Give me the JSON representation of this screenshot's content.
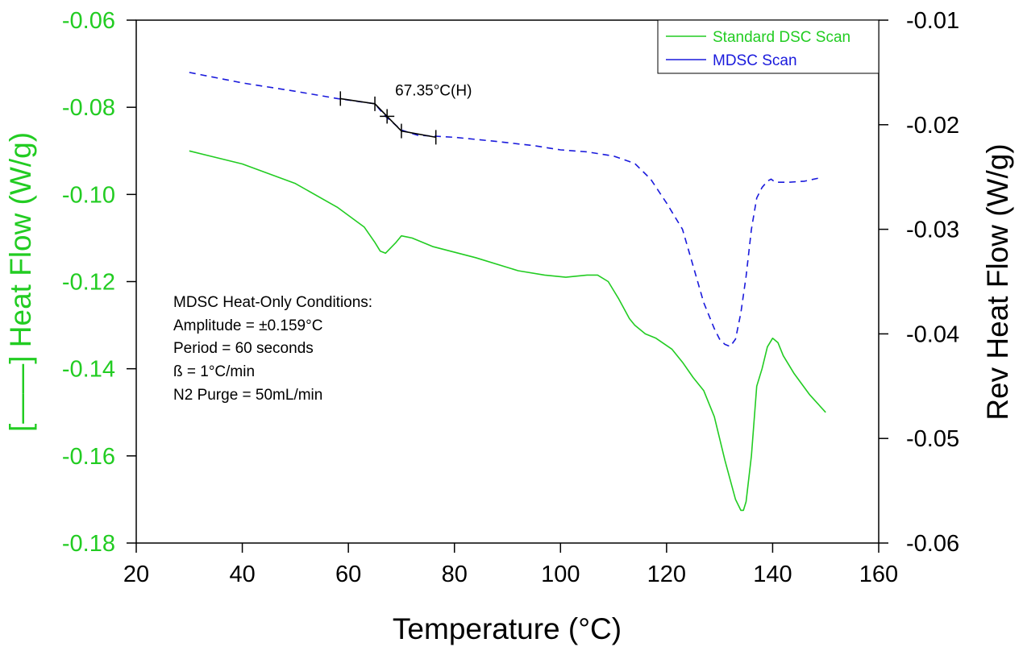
{
  "colors": {
    "green": "#22cc22",
    "blue": "#1a1adc",
    "black": "#000000"
  },
  "chart_data": {
    "type": "line",
    "xlabel": "Temperature (°C)",
    "ylabel_left": "[——] Heat Flow (W/g)",
    "ylabel_right": "Rev Heat Flow (W/g)",
    "xlim": [
      20,
      160
    ],
    "ylim_left": [
      -0.18,
      -0.06
    ],
    "ylim_right": [
      -0.06,
      -0.01
    ],
    "x_ticks": [
      20,
      40,
      60,
      80,
      100,
      120,
      140,
      160
    ],
    "x_tick_labels": [
      "20",
      "40",
      "60",
      "80",
      "100",
      "120",
      "140",
      "160"
    ],
    "y_left_ticks": [
      -0.06,
      -0.08,
      -0.1,
      -0.12,
      -0.14,
      -0.16,
      -0.18
    ],
    "y_left_tick_labels": [
      "-0.06",
      "-0.08",
      "-0.10",
      "-0.12",
      "-0.14",
      "-0.16",
      "-0.18"
    ],
    "y_right_ticks": [
      -0.01,
      -0.02,
      -0.03,
      -0.04,
      -0.05,
      -0.06
    ],
    "y_right_tick_labels": [
      "-0.01",
      "-0.02",
      "-0.03",
      "-0.04",
      "-0.05",
      "-0.06"
    ],
    "legend_position": "top-right",
    "series": [
      {
        "name": "Standard DSC Scan",
        "axis": "left",
        "color": "#22cc22",
        "dash": "solid",
        "x": [
          30,
          40,
          50,
          58,
          63,
          65,
          66,
          67,
          69,
          70,
          72,
          76,
          84,
          92,
          97,
          101,
          105,
          107,
          109,
          111,
          113,
          114,
          116,
          118,
          121,
          123,
          125,
          127,
          129,
          131,
          133,
          134,
          134.5,
          135,
          136,
          137,
          138,
          139,
          140,
          141,
          142,
          144,
          147,
          150
        ],
        "y": [
          -0.09,
          -0.093,
          -0.0975,
          -0.103,
          -0.1075,
          -0.111,
          -0.113,
          -0.1135,
          -0.111,
          -0.1095,
          -0.11,
          -0.112,
          -0.1145,
          -0.1175,
          -0.1185,
          -0.119,
          -0.1185,
          -0.1185,
          -0.12,
          -0.124,
          -0.1285,
          -0.13,
          -0.132,
          -0.133,
          -0.1355,
          -0.1385,
          -0.142,
          -0.145,
          -0.151,
          -0.161,
          -0.17,
          -0.1725,
          -0.1725,
          -0.1705,
          -0.16,
          -0.144,
          -0.14,
          -0.135,
          -0.133,
          -0.134,
          -0.137,
          -0.141,
          -0.146,
          -0.15
        ]
      },
      {
        "name": "MDSC Scan",
        "axis": "right",
        "color": "#1a1adc",
        "dash": "dashed",
        "x": [
          30,
          40,
          50,
          58,
          65,
          67,
          70,
          73,
          80,
          88,
          95,
          100,
          105,
          110,
          114,
          117,
          120,
          123,
          125,
          127,
          129,
          130,
          131,
          132,
          133,
          134,
          135,
          136,
          137,
          138,
          139,
          139.7,
          140.5,
          141.5,
          143,
          146,
          148.7
        ],
        "y": [
          -0.015,
          -0.016,
          -0.0168,
          -0.0175,
          -0.018,
          -0.0192,
          -0.0205,
          -0.021,
          -0.0212,
          -0.0216,
          -0.022,
          -0.0224,
          -0.0226,
          -0.023,
          -0.0237,
          -0.0252,
          -0.0275,
          -0.03,
          -0.0335,
          -0.037,
          -0.0395,
          -0.0405,
          -0.041,
          -0.0412,
          -0.0405,
          -0.038,
          -0.0345,
          -0.03,
          -0.027,
          -0.026,
          -0.0254,
          -0.0252,
          -0.0255,
          -0.0255,
          -0.0255,
          -0.0254,
          -0.0251
        ]
      }
    ],
    "glass_transition": {
      "label": "67.35°C(H)",
      "x": [
        58.5,
        65,
        67.3,
        70,
        76.5
      ],
      "y": [
        -0.0175,
        -0.018,
        -0.0192,
        -0.0206,
        -0.0212
      ],
      "tick_x": [
        58.5,
        65,
        70,
        76.5
      ],
      "cross_x": 67.3,
      "axis": "right"
    },
    "annotation_lines": [
      "MDSC Heat-Only Conditions:",
      "Amplitude = ±0.159°C",
      "Period = 60 seconds",
      "ß = 1°C/min",
      "N2 Purge = 50mL/min"
    ]
  }
}
